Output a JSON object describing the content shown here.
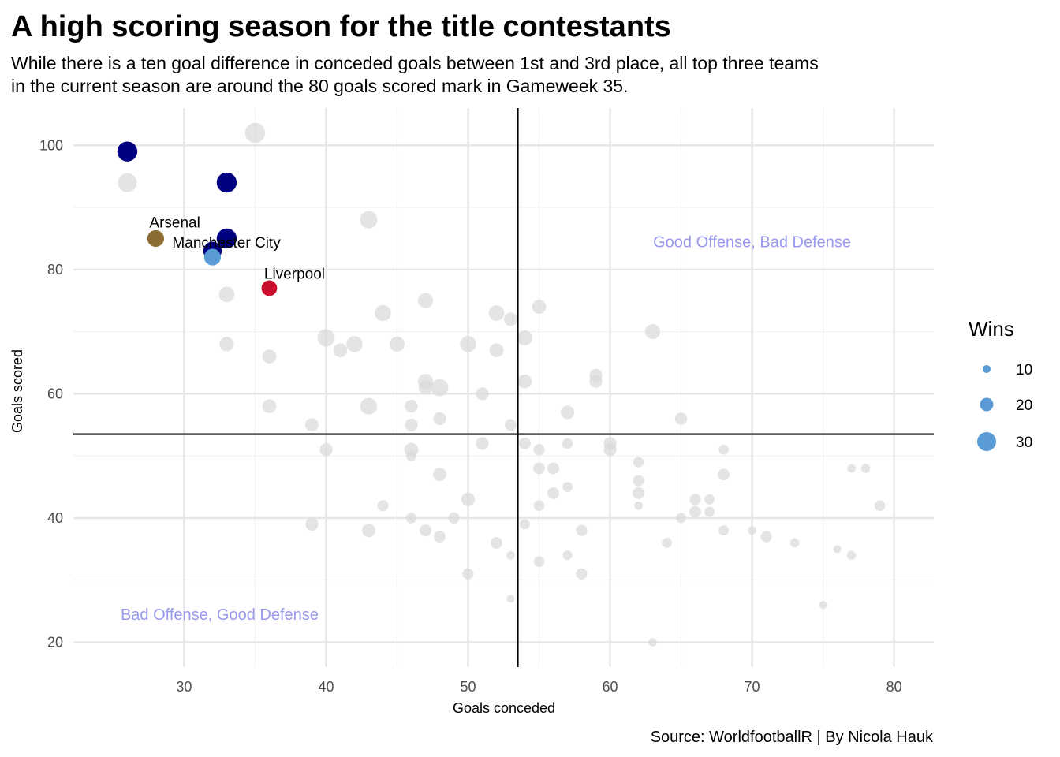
{
  "title": "A high scoring season for the title contestants",
  "subtitle_lines": [
    "While there is a ten goal difference in conceded goals between 1st and 3rd place, all top three teams",
    "in the current season are around the 80 goals scored mark in Gameweek 35."
  ],
  "caption": "Source: WorldfootballR | By Nicola Hauk",
  "colors": {
    "background_point": "#d9d9d9",
    "highlight_navy": "#000080",
    "arsenal": "#8b6d34",
    "manchester_city": "#5b9bd5",
    "liverpool": "#c8102e",
    "quadrant_text": "#9999ee",
    "grid": "#e6e6e6",
    "reference_lines": "#000000",
    "legend_points": "#5b9bd5"
  },
  "chart_data": {
    "type": "scatter",
    "xlabel": "Goals conceded",
    "ylabel": "Goals scored",
    "xlim": [
      22.2,
      82.8
    ],
    "ylim": [
      16,
      106
    ],
    "x_ticks": [
      30,
      40,
      50,
      60,
      70,
      80
    ],
    "y_ticks": [
      20,
      40,
      60,
      80,
      100
    ],
    "grid": true,
    "reference_lines": {
      "x": 53.5,
      "y": 53.5
    },
    "quadrant_labels": [
      {
        "text": "Good Offense, Bad Defense",
        "x": 70,
        "y": 84.5
      },
      {
        "text": "Bad Offense, Good Defense",
        "x": 32.5,
        "y": 24.5
      }
    ],
    "size_legend": {
      "title": "Wins",
      "values": [
        10,
        20,
        30
      ]
    },
    "highlighted": [
      {
        "x": 26,
        "y": 99,
        "wins": 32,
        "group": "navy"
      },
      {
        "x": 33,
        "y": 94,
        "wins": 32,
        "group": "navy"
      },
      {
        "x": 33,
        "y": 85,
        "wins": 32,
        "group": "navy"
      },
      {
        "x": 32,
        "y": 83,
        "wins": 29,
        "group": "navy"
      },
      {
        "x": 28,
        "y": 85,
        "wins": 26,
        "group": "arsenal",
        "label": "Arsenal"
      },
      {
        "x": 32,
        "y": 82,
        "wins": 26,
        "group": "manchester_city",
        "label": "Manchester City"
      },
      {
        "x": 36,
        "y": 77,
        "wins": 24,
        "group": "liverpool",
        "label": "Liverpool"
      }
    ],
    "points": [
      {
        "x": 35,
        "y": 102,
        "wins": 32
      },
      {
        "x": 26,
        "y": 94,
        "wins": 30
      },
      {
        "x": 43,
        "y": 88,
        "wins": 27
      },
      {
        "x": 33,
        "y": 76,
        "wins": 24
      },
      {
        "x": 33,
        "y": 68,
        "wins": 22
      },
      {
        "x": 36,
        "y": 66,
        "wins": 21
      },
      {
        "x": 36,
        "y": 58,
        "wins": 21
      },
      {
        "x": 39,
        "y": 55,
        "wins": 20
      },
      {
        "x": 40,
        "y": 51,
        "wins": 19
      },
      {
        "x": 40,
        "y": 69,
        "wins": 27
      },
      {
        "x": 41,
        "y": 67,
        "wins": 21
      },
      {
        "x": 42,
        "y": 68,
        "wins": 25
      },
      {
        "x": 44,
        "y": 73,
        "wins": 25
      },
      {
        "x": 45,
        "y": 68,
        "wins": 23
      },
      {
        "x": 43,
        "y": 58,
        "wins": 26
      },
      {
        "x": 47,
        "y": 75,
        "wins": 23
      },
      {
        "x": 47,
        "y": 62,
        "wins": 23
      },
      {
        "x": 47,
        "y": 61,
        "wins": 21
      },
      {
        "x": 48,
        "y": 61,
        "wins": 27
      },
      {
        "x": 48,
        "y": 56,
        "wins": 19
      },
      {
        "x": 46,
        "y": 58,
        "wins": 19
      },
      {
        "x": 46,
        "y": 55,
        "wins": 19
      },
      {
        "x": 46,
        "y": 51,
        "wins": 21
      },
      {
        "x": 46,
        "y": 50,
        "wins": 15
      },
      {
        "x": 48,
        "y": 47,
        "wins": 20
      },
      {
        "x": 50,
        "y": 68,
        "wins": 25
      },
      {
        "x": 51,
        "y": 60,
        "wins": 19
      },
      {
        "x": 52,
        "y": 73,
        "wins": 24
      },
      {
        "x": 52,
        "y": 67,
        "wins": 21
      },
      {
        "x": 53,
        "y": 72,
        "wins": 20
      },
      {
        "x": 54,
        "y": 69,
        "wins": 23
      },
      {
        "x": 54,
        "y": 62,
        "wins": 21
      },
      {
        "x": 55,
        "y": 74,
        "wins": 21
      },
      {
        "x": 51,
        "y": 52,
        "wins": 19
      },
      {
        "x": 53,
        "y": 55,
        "wins": 17
      },
      {
        "x": 54,
        "y": 52,
        "wins": 17
      },
      {
        "x": 55,
        "y": 51,
        "wins": 16
      },
      {
        "x": 55,
        "y": 48,
        "wins": 17
      },
      {
        "x": 56,
        "y": 48,
        "wins": 17
      },
      {
        "x": 56,
        "y": 44,
        "wins": 17
      },
      {
        "x": 57,
        "y": 45,
        "wins": 14
      },
      {
        "x": 55,
        "y": 42,
        "wins": 15
      },
      {
        "x": 57,
        "y": 52,
        "wins": 15
      },
      {
        "x": 57,
        "y": 57,
        "wins": 20
      },
      {
        "x": 59,
        "y": 63,
        "wins": 19
      },
      {
        "x": 59,
        "y": 62,
        "wins": 19
      },
      {
        "x": 60,
        "y": 52,
        "wins": 19
      },
      {
        "x": 60,
        "y": 51,
        "wins": 19
      },
      {
        "x": 63,
        "y": 70,
        "wins": 23
      },
      {
        "x": 65,
        "y": 56,
        "wins": 18
      },
      {
        "x": 62,
        "y": 49,
        "wins": 15
      },
      {
        "x": 62,
        "y": 46,
        "wins": 16
      },
      {
        "x": 62,
        "y": 44,
        "wins": 17
      },
      {
        "x": 62,
        "y": 42,
        "wins": 11
      },
      {
        "x": 68,
        "y": 51,
        "wins": 14
      },
      {
        "x": 68,
        "y": 47,
        "wins": 17
      },
      {
        "x": 66,
        "y": 43,
        "wins": 16
      },
      {
        "x": 67,
        "y": 43,
        "wins": 14
      },
      {
        "x": 66,
        "y": 41,
        "wins": 17
      },
      {
        "x": 67,
        "y": 41,
        "wins": 14
      },
      {
        "x": 65,
        "y": 40,
        "wins": 14
      },
      {
        "x": 68,
        "y": 38,
        "wins": 14
      },
      {
        "x": 70,
        "y": 38,
        "wins": 11
      },
      {
        "x": 71,
        "y": 37,
        "wins": 16
      },
      {
        "x": 73,
        "y": 36,
        "wins": 12
      },
      {
        "x": 76,
        "y": 35,
        "wins": 10
      },
      {
        "x": 77,
        "y": 34,
        "wins": 12
      },
      {
        "x": 77,
        "y": 48,
        "wins": 11
      },
      {
        "x": 78,
        "y": 48,
        "wins": 12
      },
      {
        "x": 79,
        "y": 42,
        "wins": 15
      },
      {
        "x": 75,
        "y": 26,
        "wins": 10
      },
      {
        "x": 64,
        "y": 36,
        "wins": 14
      },
      {
        "x": 63,
        "y": 20,
        "wins": 11
      },
      {
        "x": 58,
        "y": 38,
        "wins": 16
      },
      {
        "x": 58,
        "y": 31,
        "wins": 16
      },
      {
        "x": 57,
        "y": 34,
        "wins": 13
      },
      {
        "x": 55,
        "y": 33,
        "wins": 15
      },
      {
        "x": 54,
        "y": 39,
        "wins": 14
      },
      {
        "x": 53,
        "y": 34,
        "wins": 11
      },
      {
        "x": 53,
        "y": 27,
        "wins": 10
      },
      {
        "x": 52,
        "y": 36,
        "wins": 17
      },
      {
        "x": 50,
        "y": 43,
        "wins": 20
      },
      {
        "x": 50,
        "y": 31,
        "wins": 16
      },
      {
        "x": 49,
        "y": 40,
        "wins": 16
      },
      {
        "x": 48,
        "y": 37,
        "wins": 17
      },
      {
        "x": 47,
        "y": 38,
        "wins": 17
      },
      {
        "x": 46,
        "y": 40,
        "wins": 15
      },
      {
        "x": 44,
        "y": 42,
        "wins": 16
      },
      {
        "x": 43,
        "y": 38,
        "wins": 20
      },
      {
        "x": 39,
        "y": 39,
        "wins": 19
      }
    ]
  }
}
